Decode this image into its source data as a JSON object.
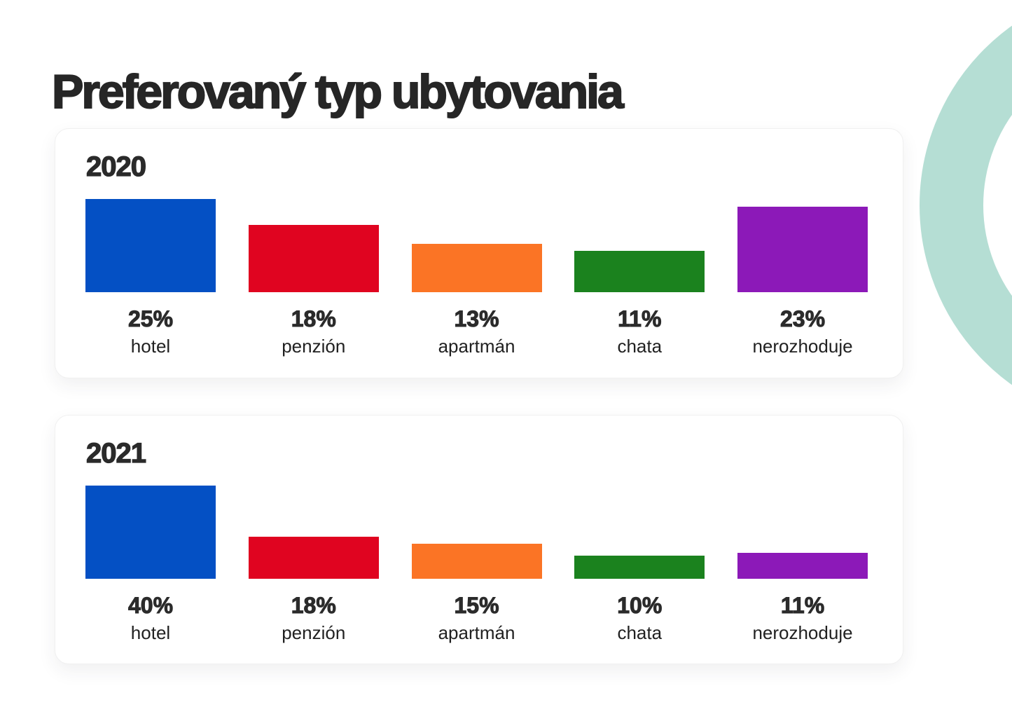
{
  "title": "Preferovaný typ ubytovania",
  "decor": {
    "ring_color": "#B5DED4",
    "page_background": "#FFFFFF"
  },
  "chart_data": [
    {
      "type": "bar",
      "title": "2020",
      "categories": [
        "hotel",
        "penzión",
        "apartmán",
        "chata",
        "nerozhoduje"
      ],
      "values": [
        25,
        18,
        13,
        11,
        23
      ],
      "value_labels": [
        "25%",
        "18%",
        "13%",
        "11%",
        "23%"
      ],
      "bar_colors": [
        "#0450C4",
        "#E00420",
        "#FB7425",
        "#1B821E",
        "#8C19B8"
      ],
      "unit": "%",
      "ylim": [
        0,
        25
      ],
      "grid": false,
      "legend": "none"
    },
    {
      "type": "bar",
      "title": "2021",
      "categories": [
        "hotel",
        "penzión",
        "apartmán",
        "chata",
        "nerozhoduje"
      ],
      "values": [
        40,
        18,
        15,
        10,
        11
      ],
      "value_labels": [
        "40%",
        "18%",
        "15%",
        "10%",
        "11%"
      ],
      "bar_colors": [
        "#0450C4",
        "#E00420",
        "#FB7425",
        "#1B821E",
        "#8C19B8"
      ],
      "unit": "%",
      "ylim": [
        0,
        40
      ],
      "grid": false,
      "legend": "none"
    }
  ]
}
